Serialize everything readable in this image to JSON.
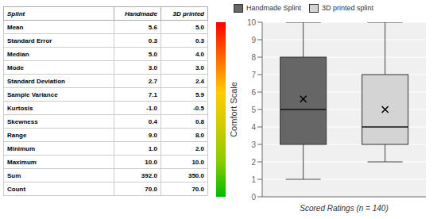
{
  "chart_data": {
    "type": "box",
    "table": {
      "header": [
        "Splint",
        "Handmade",
        "3D printed"
      ],
      "rows": [
        [
          "Mean",
          "5.6",
          "5.0"
        ],
        [
          "Standard Error",
          "0.3",
          "0.3"
        ],
        [
          "Median",
          "5.0",
          "4.0"
        ],
        [
          "Mode",
          "3.0",
          "3.0"
        ],
        [
          "Standard Deviation",
          "2.7",
          "2.4"
        ],
        [
          "Sample Variance",
          "7.1",
          "5.9"
        ],
        [
          "Kurtosis",
          "-1.0",
          "-0.5"
        ],
        [
          "Skewness",
          "0.4",
          "0.8"
        ],
        [
          "Range",
          "9.0",
          "8.0"
        ],
        [
          "Minimum",
          "1.0",
          "2.0"
        ],
        [
          "Maximum",
          "10.0",
          "10.0"
        ],
        [
          "Sum",
          "392.0",
          "350.0"
        ],
        [
          "Count",
          "70.0",
          "70.0"
        ]
      ]
    },
    "series": [
      {
        "name": "Handmade Splint",
        "color": "#666666",
        "min": 1.0,
        "q1": 3.0,
        "median": 5.0,
        "q3": 8.0,
        "max": 10.0,
        "mean": 5.6
      },
      {
        "name": "3D printed splint",
        "color": "#d4d4d4",
        "min": 2.0,
        "q1": 3.0,
        "median": 4.0,
        "q3": 7.0,
        "max": 10.0,
        "mean": 5.0
      }
    ],
    "ylabel": "Comfort Scale",
    "xlabel": "Scored Ratings (n = 140)",
    "ylim": [
      0,
      10
    ],
    "yticks": [
      0,
      1,
      2,
      3,
      4,
      5,
      6,
      7,
      8,
      9,
      10
    ],
    "grid": true,
    "background_color": "#f0f0f0",
    "legend": "upper left",
    "tick_labels": "y",
    "colorbar": {
      "colors": [
        "#00bb00",
        "#88cc00",
        "#cccc00",
        "#ffcc00",
        "#ff6600",
        "#ff0000"
      ]
    }
  }
}
